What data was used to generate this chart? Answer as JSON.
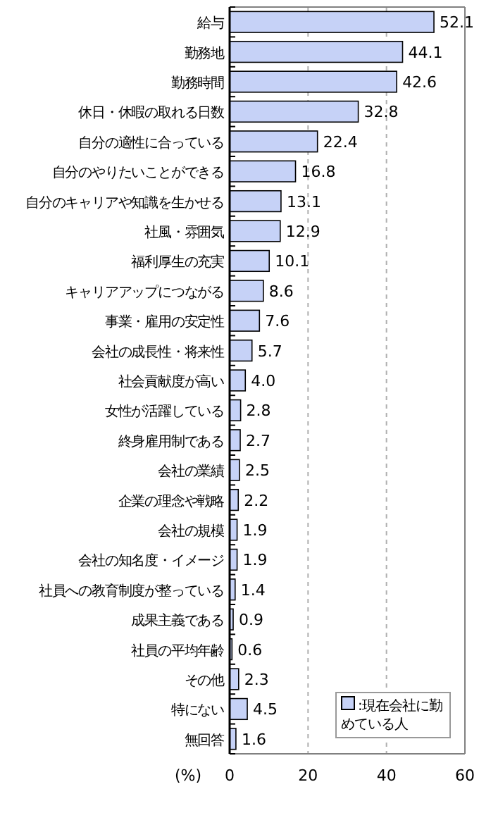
{
  "chart_data": {
    "type": "bar",
    "orientation": "horizontal",
    "xlabel": "(%)",
    "categories": [
      "給与",
      "勤務地",
      "勤務時間",
      "休日・休暇の取れる日数",
      "自分の適性に合っている",
      "自分のやりたいことができる",
      "自分のキャリアや知識を生かせる",
      "社風・雰囲気",
      "福利厚生の充実",
      "キャリアアップにつながる",
      "事業・雇用の安定性",
      "会社の成長性・将来性",
      "社会貢献度が高い",
      "女性が活躍している",
      "終身雇用制である",
      "会社の業績",
      "企業の理念や戦略",
      "会社の規模",
      "会社の知名度・イメージ",
      "社員への教育制度が整っている",
      "成果主義である",
      "社員の平均年齢",
      "その他",
      "特にない",
      "無回答"
    ],
    "series": [
      {
        "name": ":現在会社に勤めている人",
        "color": "#c6d2f7",
        "values": [
          52.1,
          44.1,
          42.6,
          32.8,
          22.4,
          16.8,
          13.1,
          12.9,
          10.1,
          8.6,
          7.6,
          5.7,
          4.0,
          2.8,
          2.7,
          2.5,
          2.2,
          1.9,
          1.9,
          1.4,
          0.9,
          0.6,
          2.3,
          4.5,
          1.6
        ],
        "value_labels": [
          "52.1",
          "44.1",
          "42.6",
          "32.8",
          "22.4",
          "16.8",
          "13.1",
          "12.9",
          "10.1",
          "8.6",
          "7.6",
          "5.7",
          "4.0",
          "2.8",
          "2.7",
          "2.5",
          "2.2",
          "1.9",
          "1.9",
          "1.4",
          "0.9",
          "0.6",
          "2.3",
          "4.5",
          "1.6"
        ]
      }
    ],
    "xlim": [
      0,
      60
    ],
    "xticks": [
      0,
      20,
      40,
      60
    ],
    "grid": "x",
    "legend": "bottom right"
  }
}
